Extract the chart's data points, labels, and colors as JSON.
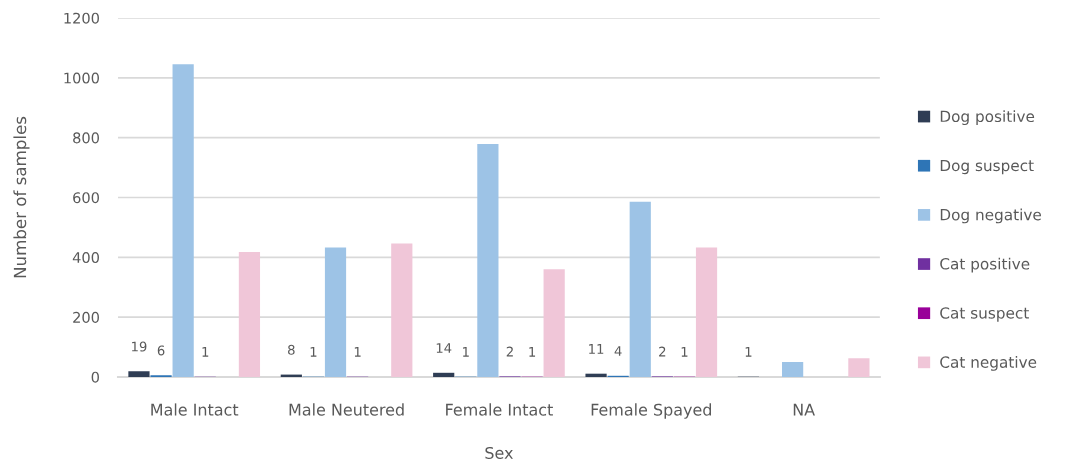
{
  "chart_data": {
    "type": "bar",
    "xlabel": "Sex",
    "ylabel": "Number of samples",
    "categories": [
      "Male Intact",
      "Male Neutered",
      "Female Intact",
      "Female Spayed",
      "NA"
    ],
    "series": [
      {
        "name": "Dog positive",
        "color": "#2f3d54",
        "values": [
          19,
          8,
          14,
          11,
          1
        ],
        "value_labels": [
          "19",
          "8",
          "14",
          "11",
          "1"
        ]
      },
      {
        "name": "Dog suspect",
        "color": "#2e75b6",
        "values": [
          6,
          1,
          1,
          4,
          null
        ],
        "value_labels": [
          "6",
          "1",
          "1",
          "4",
          null
        ]
      },
      {
        "name": "Dog negative",
        "color": "#9dc3e6",
        "values": [
          1045,
          433,
          779,
          586,
          50
        ]
      },
      {
        "name": "Cat positive",
        "color": "#7030a0",
        "values": [
          1,
          1,
          2,
          2,
          null
        ],
        "value_labels": [
          "1",
          "1",
          "2",
          "2",
          null
        ]
      },
      {
        "name": "Cat suspect",
        "color": "#990099",
        "values": [
          null,
          null,
          1,
          1,
          null
        ],
        "value_labels": [
          null,
          null,
          "1",
          "1",
          null
        ]
      },
      {
        "name": "Cat negative",
        "color": "#f0c6d8",
        "values": [
          418,
          446,
          360,
          433,
          63
        ]
      }
    ],
    "ylim": [
      0,
      1200
    ],
    "yticks": [
      0,
      200,
      400,
      600,
      800,
      1000,
      1200
    ],
    "grid": "y",
    "legend": "right"
  }
}
